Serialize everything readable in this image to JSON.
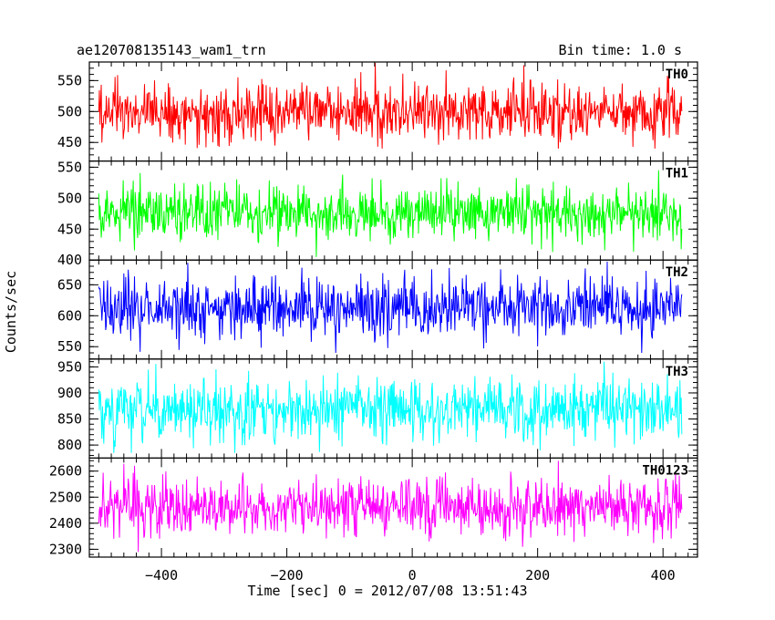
{
  "header": {
    "title": "ae120708135143_wam1_trn",
    "bin_time": "Bin time: 1.0 s"
  },
  "chart_data": {
    "type": "line",
    "title": "ae120708135143_wam1_trn",
    "subtitle": "Bin time: 1.0 s",
    "xlabel": "Time [sec] 0 = 2012/07/08 13:51:43",
    "ylabel": "Counts/sec",
    "xlim": [
      -515,
      455
    ],
    "x_start": -500,
    "x_end": 430,
    "x_step": 1,
    "x_ticks": [
      -400,
      -200,
      0,
      200,
      400
    ],
    "x_tick_labels": [
      "−400",
      "−200",
      "0",
      "200",
      "400"
    ],
    "grid": false,
    "panels": [
      {
        "name": "TH0",
        "color": "#ff0000",
        "ylim": [
          420,
          580
        ],
        "yticks": [
          450,
          500,
          550
        ],
        "mean": 500,
        "sd": 24,
        "min": 440,
        "max": 580
      },
      {
        "name": "TH1",
        "color": "#00ff00",
        "ylim": [
          400,
          560
        ],
        "yticks": [
          400,
          450,
          500,
          550
        ],
        "mean": 475,
        "sd": 22,
        "min": 405,
        "max": 550
      },
      {
        "name": "TH2",
        "color": "#0000ff",
        "ylim": [
          530,
          690
        ],
        "yticks": [
          550,
          600,
          650
        ],
        "mean": 612,
        "sd": 25,
        "min": 540,
        "max": 690
      },
      {
        "name": "TH3",
        "color": "#00ffff",
        "ylim": [
          775,
          965
        ],
        "yticks": [
          800,
          850,
          900,
          950
        ],
        "mean": 868,
        "sd": 30,
        "min": 785,
        "max": 960
      },
      {
        "name": "TH0123",
        "color": "#ff00ff",
        "ylim": [
          2270,
          2650
        ],
        "yticks": [
          2300,
          2400,
          2500,
          2600
        ],
        "mean": 2460,
        "sd": 55,
        "min": 2290,
        "max": 2640
      }
    ]
  }
}
